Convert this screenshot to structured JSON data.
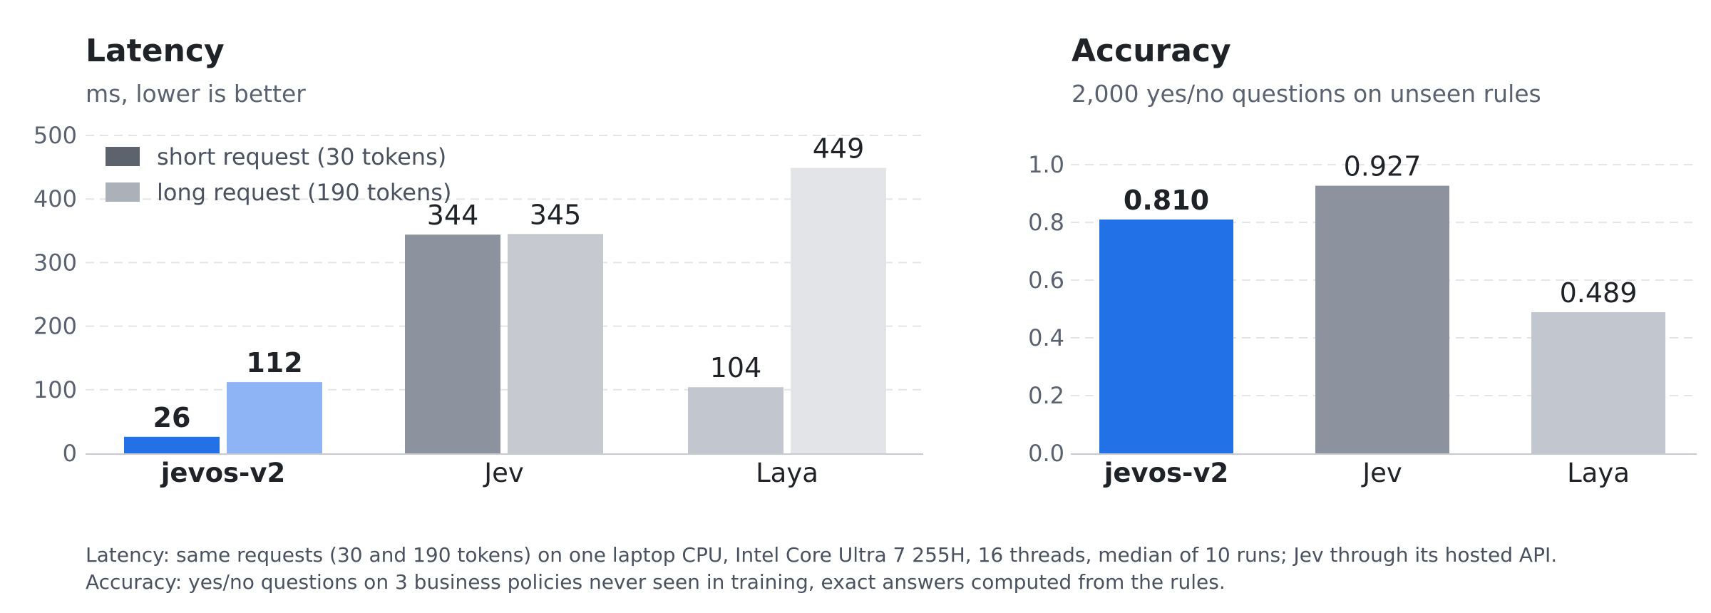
{
  "chart_data": [
    {
      "type": "bar",
      "title": "Latency",
      "subtitle": "ms, lower is better",
      "categories": [
        "jevos-v2",
        "Jev",
        "Laya"
      ],
      "highlight_category": "jevos-v2",
      "series": [
        {
          "name": "short request (30 tokens)",
          "values": [
            26,
            344,
            104
          ],
          "labels": [
            "26",
            "344",
            "104"
          ]
        },
        {
          "name": "long request (190 tokens)",
          "values": [
            112,
            345,
            449
          ],
          "labels": [
            "112",
            "345",
            "449"
          ]
        }
      ],
      "legend_colors": [
        "#5d636d",
        "#abb1b9"
      ],
      "bar_colors": [
        [
          "#2271e6",
          "#8fb4f5"
        ],
        [
          "#8d939e",
          "#c6c9cf"
        ],
        [
          "#c2c7cf",
          "#e3e4e7"
        ]
      ],
      "yticks": [
        0,
        100,
        200,
        300,
        400,
        500
      ],
      "ylim": [
        0,
        500
      ],
      "grid": true,
      "legend_position": "top-left"
    },
    {
      "type": "bar",
      "title": "Accuracy",
      "subtitle": "2,000 yes/no questions on unseen rules",
      "categories": [
        "jevos-v2",
        "Jev",
        "Laya"
      ],
      "highlight_category": "jevos-v2",
      "values": [
        0.81,
        0.927,
        0.489
      ],
      "labels": [
        "0.810",
        "0.927",
        "0.489"
      ],
      "bar_colors": [
        "#2271e6",
        "#8d939e",
        "#c2c7cf"
      ],
      "yticks": [
        "0.0",
        "0.2",
        "0.4",
        "0.6",
        "0.8",
        "1.0"
      ],
      "ylim": [
        0,
        1.0
      ],
      "grid": true
    }
  ],
  "footnotes": [
    "Latency: same requests (30 and 190 tokens) on one laptop CPU, Intel Core Ultra 7 255H, 16 threads, median of 10 runs; Jev through its hosted API.",
    "Accuracy: yes/no questions on 3 business policies never seen in training, exact answers computed from the rules."
  ],
  "colors": {
    "text_dark": "#1f2328",
    "text_muted": "#5a6270",
    "grid": "#e3e5e8",
    "axis": "#c7cbd1"
  }
}
